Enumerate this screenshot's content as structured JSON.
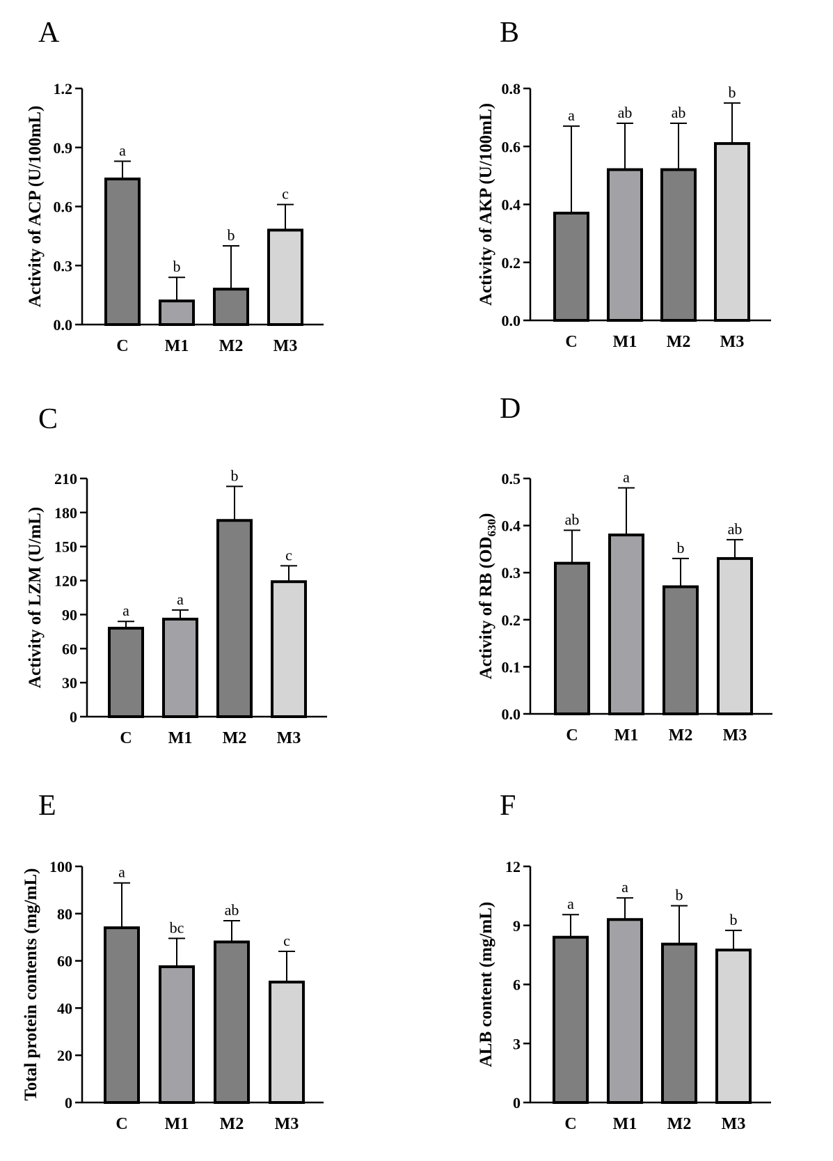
{
  "colors": {
    "dark": "#7f7f7f",
    "mid": "#a2a2a6",
    "light": "#d5d5d5"
  },
  "chart_data": [
    {
      "panel": "A",
      "type": "bar",
      "ylabel": "Activity of ACP (U/100mL)",
      "categories": [
        "C",
        "M1",
        "M2",
        "M3"
      ],
      "values": [
        0.74,
        0.12,
        0.18,
        0.48
      ],
      "errors": [
        0.09,
        0.12,
        0.22,
        0.13
      ],
      "letters": [
        "a",
        "b",
        "b",
        "c"
      ],
      "ylim": [
        0,
        1.2
      ],
      "ticks": [
        "0.0",
        "0.3",
        "0.6",
        "0.9",
        "1.2"
      ],
      "bar_colors": [
        "dark",
        "mid",
        "dark",
        "light"
      ]
    },
    {
      "panel": "B",
      "type": "bar",
      "ylabel": "Activity of AKP (U/100mL)",
      "categories": [
        "C",
        "M1",
        "M2",
        "M3"
      ],
      "values": [
        0.37,
        0.52,
        0.52,
        0.61
      ],
      "errors": [
        0.3,
        0.16,
        0.16,
        0.14
      ],
      "letters": [
        "a",
        "ab",
        "ab",
        "b"
      ],
      "ylim": [
        0,
        0.8
      ],
      "ticks": [
        "0.0",
        "0.2",
        "0.4",
        "0.6",
        "0.8"
      ],
      "bar_colors": [
        "dark",
        "mid",
        "dark",
        "light"
      ]
    },
    {
      "panel": "C",
      "type": "bar",
      "ylabel": "Activity of LZM (U/mL)",
      "categories": [
        "C",
        "M1",
        "M2",
        "M3"
      ],
      "values": [
        78,
        86,
        173,
        119
      ],
      "errors": [
        6,
        8,
        30,
        14
      ],
      "letters": [
        "a",
        "a",
        "b",
        "c"
      ],
      "ylim": [
        0,
        210
      ],
      "ticks": [
        "0",
        "30",
        "60",
        "90",
        "120",
        "150",
        "180",
        "210"
      ],
      "bar_colors": [
        "dark",
        "mid",
        "dark",
        "light"
      ]
    },
    {
      "panel": "D",
      "type": "bar",
      "ylabel": "Activity of RB (OD",
      "ylabel_sub": "630",
      "ylabel_end": ")",
      "categories": [
        "C",
        "M1",
        "M2",
        "M3"
      ],
      "values": [
        0.32,
        0.38,
        0.27,
        0.33
      ],
      "errors": [
        0.07,
        0.1,
        0.06,
        0.04
      ],
      "letters": [
        "ab",
        "a",
        "b",
        "ab"
      ],
      "ylim": [
        0,
        0.5
      ],
      "ticks": [
        "0.0",
        "0.1",
        "0.2",
        "0.3",
        "0.4",
        "0.5"
      ],
      "bar_colors": [
        "dark",
        "mid",
        "dark",
        "light"
      ]
    },
    {
      "panel": "E",
      "type": "bar",
      "ylabel": "Total protein contents (mg/mL)",
      "categories": [
        "C",
        "M1",
        "M2",
        "M3"
      ],
      "values": [
        74,
        57.5,
        68,
        51
      ],
      "errors": [
        19,
        12,
        9,
        13
      ],
      "letters": [
        "a",
        "bc",
        "ab",
        "c"
      ],
      "ylim": [
        0,
        100
      ],
      "ticks": [
        "0",
        "20",
        "40",
        "60",
        "80",
        "100"
      ],
      "bar_colors": [
        "dark",
        "mid",
        "dark",
        "light"
      ]
    },
    {
      "panel": "F",
      "type": "bar",
      "ylabel": "ALB content (mg/mL)",
      "categories": [
        "C",
        "M1",
        "M2",
        "M3"
      ],
      "values": [
        8.4,
        9.3,
        8.05,
        7.75
      ],
      "errors": [
        1.15,
        1.1,
        1.95,
        1.0
      ],
      "letters": [
        "a",
        "a",
        "b",
        "b"
      ],
      "ylim": [
        0,
        12
      ],
      "ticks": [
        "0",
        "3",
        "6",
        "9",
        "12"
      ],
      "bar_colors": [
        "dark",
        "mid",
        "dark",
        "light"
      ]
    }
  ]
}
